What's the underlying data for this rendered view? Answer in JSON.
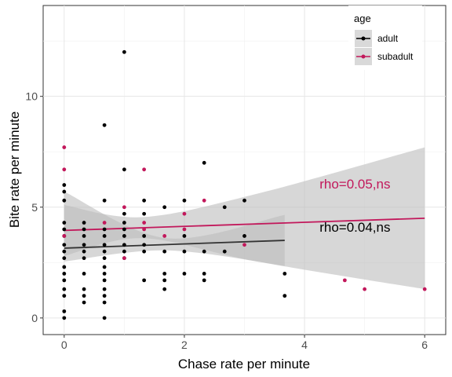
{
  "chart_data": {
    "type": "scatter",
    "xlabel": "Chase rate per minute",
    "ylabel": "Bite rate per minute",
    "xlim": [
      -0.35,
      6.35
    ],
    "ylim": [
      -0.75,
      14.1
    ],
    "xticks": [
      0,
      2,
      4,
      6
    ],
    "yticks": [
      0,
      5,
      10
    ],
    "grid": true,
    "legend": {
      "title": "age",
      "placement": "top-right",
      "entries": [
        "adult",
        "subadult"
      ]
    },
    "series": [
      {
        "name": "adult",
        "color": "#000000",
        "points": [
          [
            0,
            0
          ],
          [
            0,
            0.3
          ],
          [
            0,
            1
          ],
          [
            0,
            1.3
          ],
          [
            0,
            1.7
          ],
          [
            0,
            2
          ],
          [
            0,
            2.3
          ],
          [
            0,
            2.7
          ],
          [
            0,
            3
          ],
          [
            0,
            3.3
          ],
          [
            0,
            3.7
          ],
          [
            0,
            4
          ],
          [
            0,
            4.3
          ],
          [
            0,
            5.3
          ],
          [
            0,
            5.7
          ],
          [
            0,
            6
          ],
          [
            0.33,
            0.7
          ],
          [
            0.33,
            1
          ],
          [
            0.33,
            1.3
          ],
          [
            0.33,
            2
          ],
          [
            0.33,
            2.7
          ],
          [
            0.33,
            3
          ],
          [
            0.33,
            3.3
          ],
          [
            0.33,
            3.7
          ],
          [
            0.33,
            4
          ],
          [
            0.33,
            4.3
          ],
          [
            0.67,
            0
          ],
          [
            0.67,
            0.7
          ],
          [
            0.67,
            1
          ],
          [
            0.67,
            1.3
          ],
          [
            0.67,
            1.7
          ],
          [
            0.67,
            2
          ],
          [
            0.67,
            2.3
          ],
          [
            0.67,
            2.7
          ],
          [
            0.67,
            3
          ],
          [
            0.67,
            3.3
          ],
          [
            0.67,
            3.7
          ],
          [
            0.67,
            4
          ],
          [
            0.67,
            5.3
          ],
          [
            0.67,
            8.7
          ],
          [
            1,
            2.7
          ],
          [
            1,
            3
          ],
          [
            1,
            3.3
          ],
          [
            1,
            3.7
          ],
          [
            1,
            4
          ],
          [
            1,
            4.3
          ],
          [
            1,
            4.7
          ],
          [
            1,
            6.7
          ],
          [
            1,
            12
          ],
          [
            1.33,
            1.7
          ],
          [
            1.33,
            3
          ],
          [
            1.33,
            3.3
          ],
          [
            1.33,
            3.7
          ],
          [
            1.33,
            4.7
          ],
          [
            1.33,
            5.3
          ],
          [
            1.67,
            1.3
          ],
          [
            1.67,
            1.7
          ],
          [
            1.67,
            2
          ],
          [
            1.67,
            3
          ],
          [
            1.67,
            5
          ],
          [
            2,
            2
          ],
          [
            2,
            3
          ],
          [
            2,
            3.7
          ],
          [
            2,
            5.3
          ],
          [
            2.33,
            1.7
          ],
          [
            2.33,
            2
          ],
          [
            2.33,
            3
          ],
          [
            2.33,
            7
          ],
          [
            2.67,
            3
          ],
          [
            2.67,
            5
          ],
          [
            3,
            3.7
          ],
          [
            3,
            5.3
          ],
          [
            3.67,
            1
          ],
          [
            3.67,
            2
          ]
        ],
        "fit": {
          "x": [
            0,
            3.67
          ],
          "y": [
            3.15,
            3.5
          ],
          "ci_upper": [
            5.7,
            3.6,
            4.65
          ],
          "ci_lower": [
            2.55,
            3.05,
            2.35
          ],
          "ci_x": [
            0,
            1.7,
            3.67
          ]
        }
      },
      {
        "name": "subadult",
        "color": "#c2185b",
        "points": [
          [
            0,
            6.7
          ],
          [
            0,
            7.7
          ],
          [
            0,
            3.7
          ],
          [
            0.67,
            4.3
          ],
          [
            1,
            5
          ],
          [
            1,
            2.7
          ],
          [
            1.33,
            6.7
          ],
          [
            1.33,
            4
          ],
          [
            1.33,
            4.3
          ],
          [
            1.67,
            3.7
          ],
          [
            2,
            4.7
          ],
          [
            2,
            4
          ],
          [
            2.33,
            5.3
          ],
          [
            3,
            3.3
          ],
          [
            4.67,
            1.7
          ],
          [
            5,
            1.3
          ],
          [
            6,
            1.3
          ]
        ],
        "fit": {
          "x": [
            0,
            6
          ],
          "y": [
            3.95,
            4.5
          ],
          "ci_upper": [
            5.1,
            4.55,
            5.6,
            7.7
          ],
          "ci_lower": [
            2.8,
            3.6,
            2.55,
            1.3
          ],
          "ci_x": [
            0,
            1.3,
            3.2,
            6
          ]
        }
      }
    ],
    "annotations": [
      {
        "text": "rho=0.05,ns",
        "x": 4.25,
        "y": 5.85,
        "color": "#c2185b"
      },
      {
        "text": "rho=0.04,ns",
        "x": 4.25,
        "y": 3.9,
        "color": "#000000"
      }
    ]
  }
}
